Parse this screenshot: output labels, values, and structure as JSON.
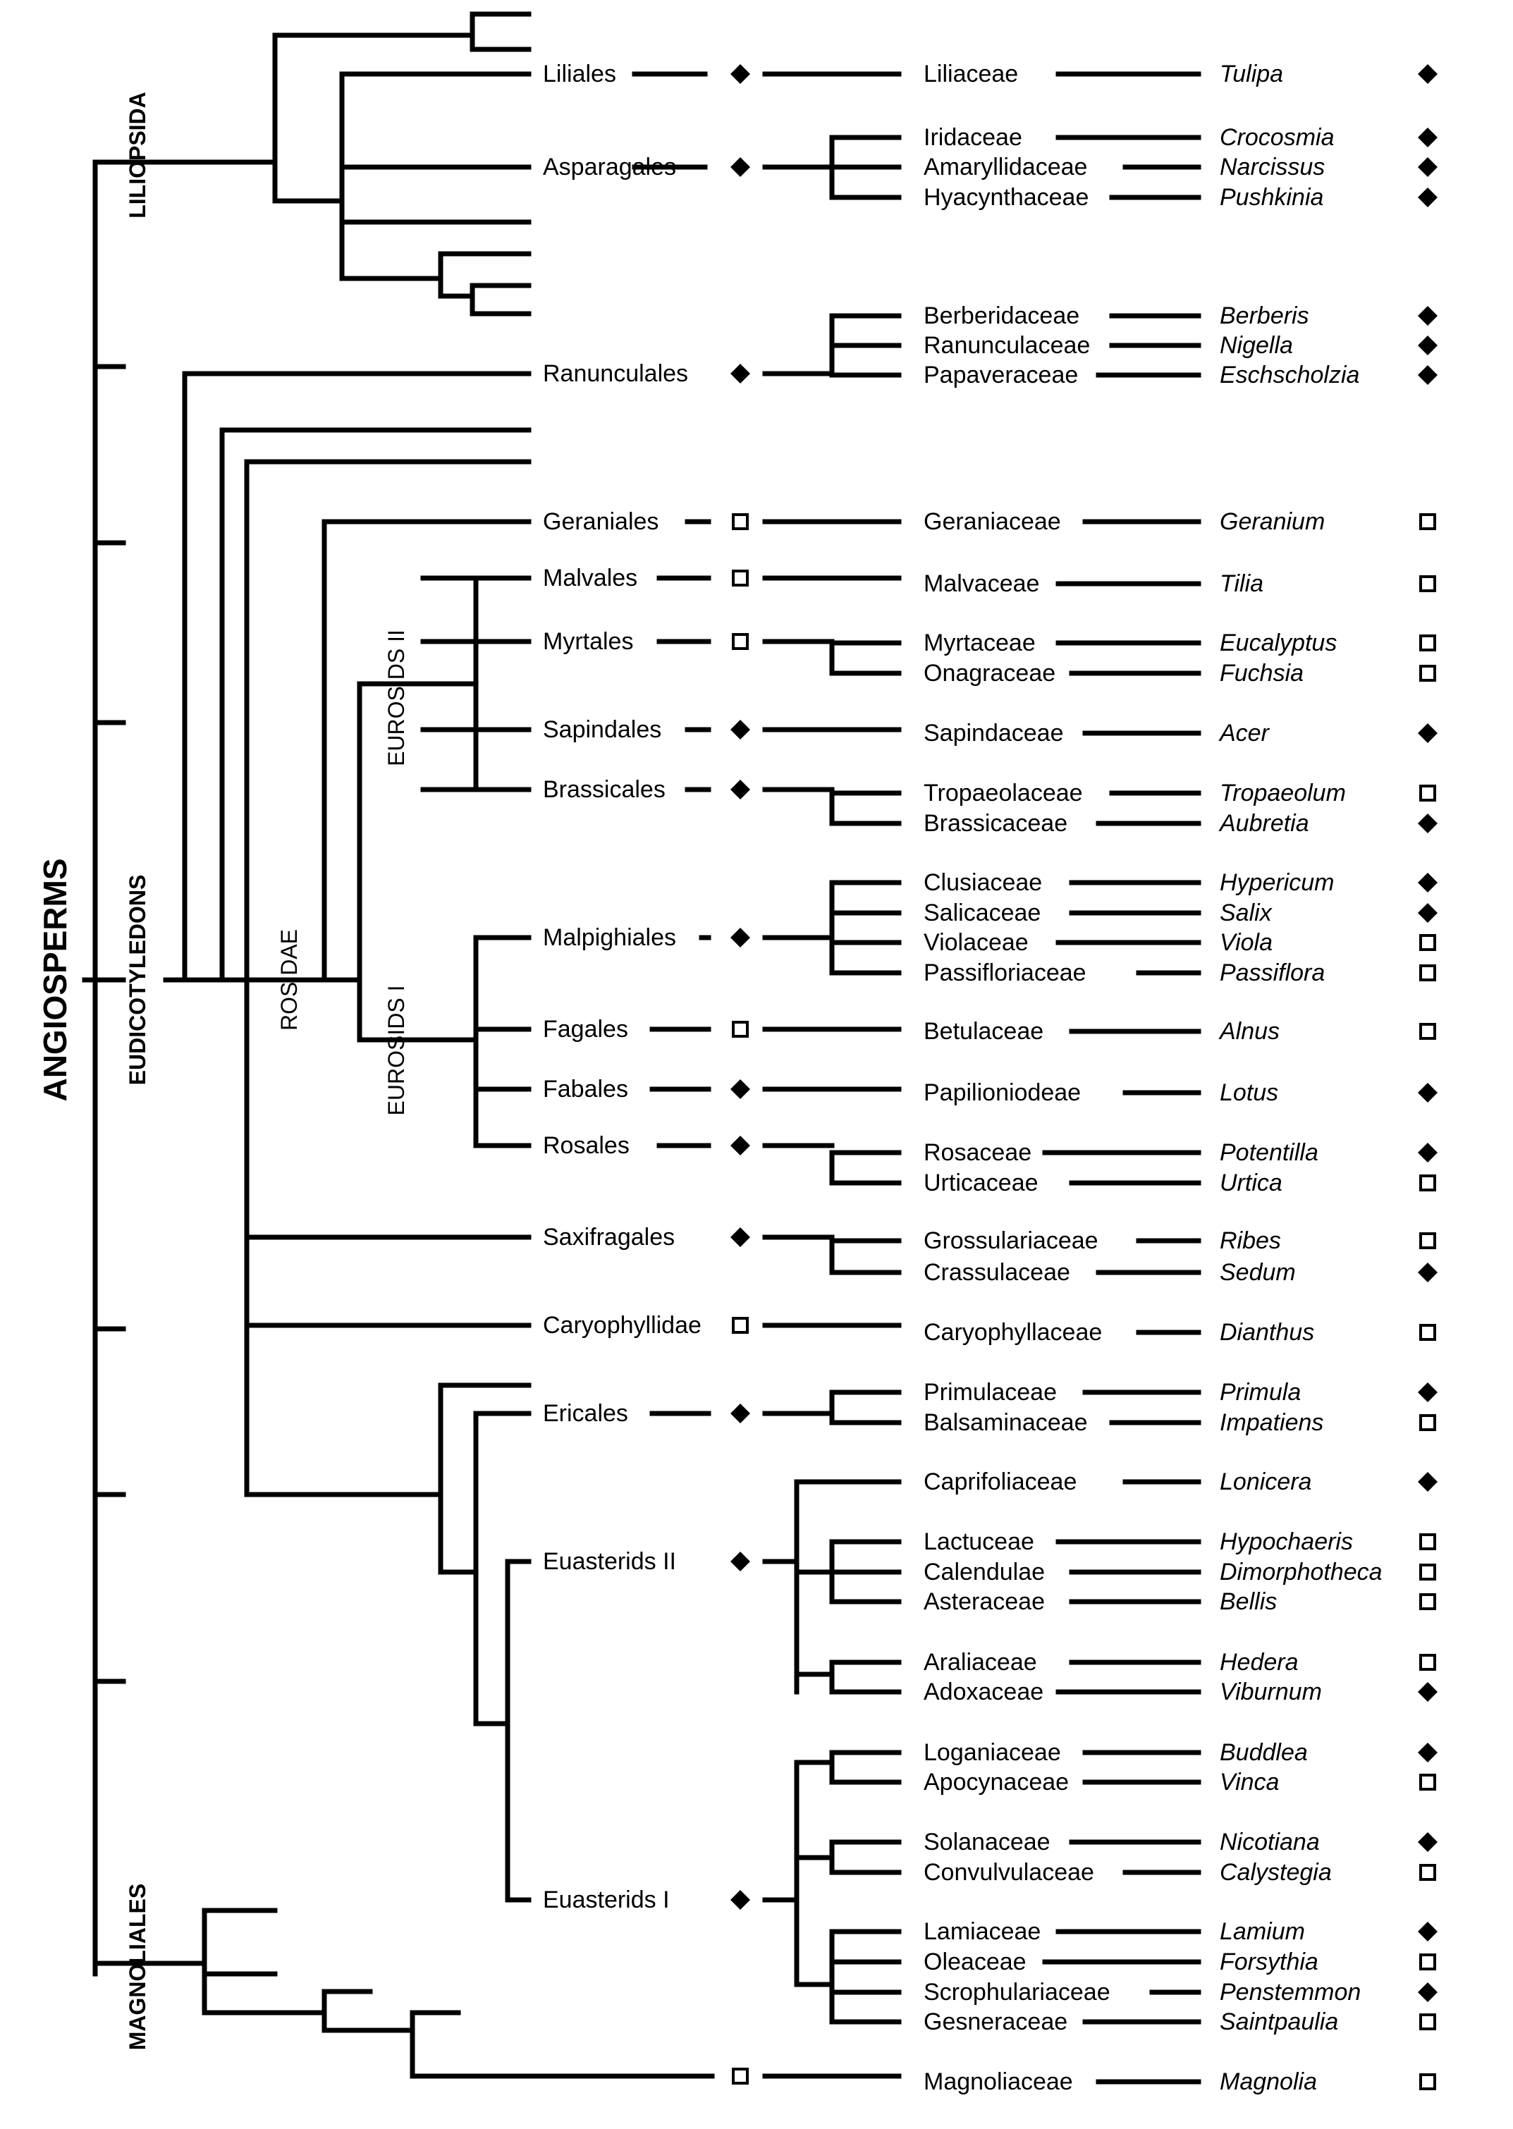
{
  "title": "ANGIOSPERMS",
  "clades": {
    "liliopsida": "LILIOPSIDA",
    "eudicotyledons": "EUDICOTYLEDONS",
    "rosidae": "ROSIDAE",
    "eurosids_ii": "EUROSIDS II",
    "eurosids_i": "EUROSIDS I",
    "magnoliales": "MAGNOLIALES"
  },
  "legend_symbols": {
    "filled": "filled-diamond",
    "open": "open-square"
  },
  "orders": [
    {
      "name": "Liliales",
      "marker": "filled"
    },
    {
      "name": "Asparagales",
      "marker": "filled"
    },
    {
      "name": "Ranunculales",
      "marker": "filled"
    },
    {
      "name": "Geraniales",
      "marker": "open"
    },
    {
      "name": "Malvales",
      "marker": "open"
    },
    {
      "name": "Myrtales",
      "marker": "open"
    },
    {
      "name": "Sapindales",
      "marker": "filled"
    },
    {
      "name": "Brassicales",
      "marker": "filled"
    },
    {
      "name": "Malpighiales",
      "marker": "filled"
    },
    {
      "name": "Fagales",
      "marker": "open"
    },
    {
      "name": "Fabales",
      "marker": "filled"
    },
    {
      "name": "Rosales",
      "marker": "filled"
    },
    {
      "name": "Saxifragales",
      "marker": "filled"
    },
    {
      "name": "Caryophyllidae",
      "marker": "open"
    },
    {
      "name": "Ericales",
      "marker": "filled"
    },
    {
      "name": "Euasterids II",
      "marker": "filled"
    },
    {
      "name": "Euasterids I",
      "marker": "filled"
    },
    {
      "name": "",
      "marker": "open"
    }
  ],
  "families": [
    {
      "family": "Liliaceae",
      "genus": "Tulipa",
      "marker": "filled"
    },
    {
      "family": "Iridaceae",
      "genus": "Crocosmia",
      "marker": "filled"
    },
    {
      "family": "Amaryllidaceae",
      "genus": "Narcissus",
      "marker": "filled"
    },
    {
      "family": "Hyacynthaceae",
      "genus": "Pushkinia",
      "marker": "filled"
    },
    {
      "family": "Berberidaceae",
      "genus": "Berberis",
      "marker": "filled"
    },
    {
      "family": "Ranunculaceae",
      "genus": "Nigella",
      "marker": "filled"
    },
    {
      "family": "Papaveraceae",
      "genus": "Eschscholzia",
      "marker": "filled"
    },
    {
      "family": "Geraniaceae",
      "genus": "Geranium",
      "marker": "open"
    },
    {
      "family": "Malvaceae",
      "genus": "Tilia",
      "marker": "open"
    },
    {
      "family": "Myrtaceae",
      "genus": "Eucalyptus",
      "marker": "open"
    },
    {
      "family": "Onagraceae",
      "genus": "Fuchsia",
      "marker": "open"
    },
    {
      "family": "Sapindaceae",
      "genus": "Acer",
      "marker": "filled"
    },
    {
      "family": "Tropaeolaceae",
      "genus": "Tropaeolum",
      "marker": "open"
    },
    {
      "family": "Brassicaceae",
      "genus": "Aubretia",
      "marker": "filled"
    },
    {
      "family": "Clusiaceae",
      "genus": "Hypericum",
      "marker": "filled"
    },
    {
      "family": "Salicaceae",
      "genus": "Salix",
      "marker": "filled"
    },
    {
      "family": "Violaceae",
      "genus": "Viola",
      "marker": "open"
    },
    {
      "family": "Passifloriaceae",
      "genus": "Passiflora",
      "marker": "open"
    },
    {
      "family": "Betulaceae",
      "genus": "Alnus",
      "marker": "open"
    },
    {
      "family": "Papilioniodeae",
      "genus": "Lotus",
      "marker": "filled"
    },
    {
      "family": "Rosaceae",
      "genus": "Potentilla",
      "marker": "filled"
    },
    {
      "family": "Urticaceae",
      "genus": "Urtica",
      "marker": "open"
    },
    {
      "family": "Grossulariaceae",
      "genus": "Ribes",
      "marker": "open"
    },
    {
      "family": "Crassulaceae",
      "genus": "Sedum",
      "marker": "filled"
    },
    {
      "family": "Caryophyllaceae",
      "genus": "Dianthus",
      "marker": "open"
    },
    {
      "family": "Primulaceae",
      "genus": "Primula",
      "marker": "filled"
    },
    {
      "family": "Balsaminaceae",
      "genus": "Impatiens",
      "marker": "open"
    },
    {
      "family": "Caprifoliaceae",
      "genus": "Lonicera",
      "marker": "filled"
    },
    {
      "family": "Lactuceae",
      "genus": "Hypochaeris",
      "marker": "open"
    },
    {
      "family": "Calendulae",
      "genus": "Dimorphotheca",
      "marker": "open"
    },
    {
      "family": "Asteraceae",
      "genus": "Bellis",
      "marker": "open"
    },
    {
      "family": "Araliaceae",
      "genus": "Hedera",
      "marker": "open"
    },
    {
      "family": "Adoxaceae",
      "genus": "Viburnum",
      "marker": "filled"
    },
    {
      "family": "Loganiaceae",
      "genus": "Buddlea",
      "marker": "filled"
    },
    {
      "family": "Apocynaceae",
      "genus": "Vinca",
      "marker": "open"
    },
    {
      "family": "Solanaceae",
      "genus": "Nicotiana",
      "marker": "filled"
    },
    {
      "family": "Convulvulaceae",
      "genus": "Calystegia",
      "marker": "open"
    },
    {
      "family": "Lamiaceae",
      "genus": "Lamium",
      "marker": "filled"
    },
    {
      "family": "Oleaceae",
      "genus": "Forsythia",
      "marker": "open"
    },
    {
      "family": "Scrophulariaceae",
      "genus": "Penstemmon",
      "marker": "filled"
    },
    {
      "family": "Gesneraceae",
      "genus": "Saintpaulia",
      "marker": "open"
    },
    {
      "family": "Magnoliaceae",
      "genus": "Magnolia",
      "marker": "open"
    }
  ]
}
